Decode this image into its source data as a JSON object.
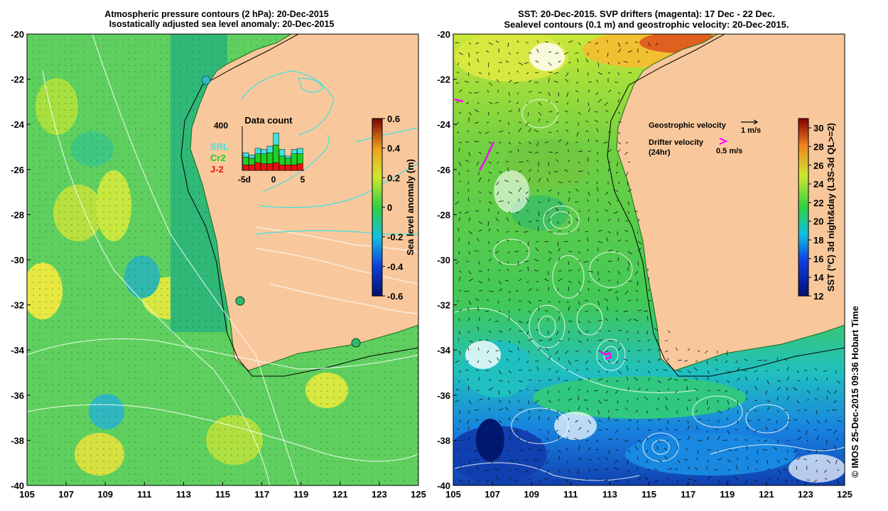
{
  "left_panel": {
    "title_line1": "Atmospheric pressure contours (2 hPa): 20-Dec-2015",
    "title_line2": "Isostatically adjusted sea level anomaly: 20-Dec-2015",
    "x_ticks": [
      "105",
      "107",
      "109",
      "111",
      "113",
      "115",
      "117",
      "119",
      "121",
      "123",
      "125"
    ],
    "y_ticks": [
      "-20",
      "-22",
      "-24",
      "-26",
      "-28",
      "-30",
      "-32",
      "-34",
      "-36",
      "-38",
      "-40"
    ],
    "colorbar": {
      "label": "Sea level anomaly (m)",
      "ticks": [
        "0.6",
        "0.4",
        "0.2",
        "0",
        "-0.2",
        "-0.4",
        "-0.6"
      ],
      "range": [
        -0.6,
        0.6
      ]
    },
    "inset": {
      "title": "Data count",
      "ymax_label": "400",
      "x_labels": [
        "-5d",
        "0",
        "5"
      ],
      "legend": [
        {
          "label": "SRL",
          "color": "#40e0e0"
        },
        {
          "label": "Cr2",
          "color": "#20d020"
        },
        {
          "label": "J-2",
          "color": "#ee1010"
        }
      ],
      "bars": [
        {
          "srl": 40,
          "cr2": 70,
          "j2": 50
        },
        {
          "srl": 30,
          "cr2": 60,
          "j2": 50
        },
        {
          "srl": 50,
          "cr2": 80,
          "j2": 70
        },
        {
          "srl": 40,
          "cr2": 90,
          "j2": 60
        },
        {
          "srl": 60,
          "cr2": 100,
          "j2": 60
        },
        {
          "srl": 110,
          "cr2": 160,
          "j2": 70
        },
        {
          "srl": 60,
          "cr2": 80,
          "j2": 50
        },
        {
          "srl": 20,
          "cr2": 60,
          "j2": 50
        },
        {
          "srl": 40,
          "cr2": 100,
          "j2": 50
        },
        {
          "srl": 50,
          "cr2": 90,
          "j2": 60
        }
      ]
    }
  },
  "right_panel": {
    "title_line1": "SST: 20-Dec-2015. SVP drifters (magenta): 17 Dec - 22 Dec.",
    "title_line2": "Sealevel contours (0.1 m) and geostrophic velocity: 20-Dec-2015.",
    "x_ticks": [
      "105",
      "107",
      "109",
      "111",
      "113",
      "115",
      "117",
      "119",
      "121",
      "123",
      "125"
    ],
    "y_ticks": [
      "-20",
      "-22",
      "-24",
      "-26",
      "-28",
      "-30",
      "-32",
      "-34",
      "-36",
      "-38",
      "-40"
    ],
    "legend_geostrophic": "Geostrophic velocity",
    "legend_geostrophic_scale": "1 m/s",
    "legend_drifter": "Drifter velocity",
    "legend_drifter_period": "(24hr)",
    "legend_drifter_scale": "0.5 m/s",
    "colorbar": {
      "label": "SST (°C) 3d night&day (L3S-3d QL>=2)",
      "ticks": [
        "30",
        "28",
        "26",
        "24",
        "22",
        "20",
        "18",
        "16",
        "14",
        "12"
      ],
      "range": [
        12,
        31
      ]
    }
  },
  "credit": "© IMOS 25-Dec-2015 09:36 Hobart Time",
  "colors": {
    "land": "#f8c89c",
    "ocean_green": "#5fd060",
    "contour_cyan": "#40e0e0",
    "drifter": "#ff00ff"
  }
}
